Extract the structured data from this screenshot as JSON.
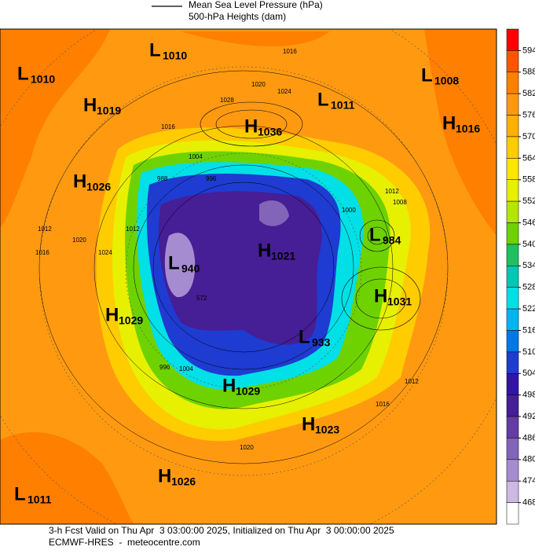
{
  "header": {
    "line1": "Mean Sea Level Pressure (hPa)",
    "line2": "500-hPa Heights (dam)"
  },
  "centers": [
    {
      "type": "L",
      "value": 1010
    },
    {
      "type": "L",
      "value": 1010
    },
    {
      "type": "H",
      "value": 1019
    },
    {
      "type": "L",
      "value": 1011
    },
    {
      "type": "H",
      "value": 1036
    },
    {
      "type": "L",
      "value": 1008
    },
    {
      "type": "H",
      "value": 1016
    },
    {
      "type": "H",
      "value": 1026
    },
    {
      "type": "L",
      "value": 984
    },
    {
      "type": "H",
      "value": 1021
    },
    {
      "type": "L",
      "value": 940
    },
    {
      "type": "H",
      "value": 1031
    },
    {
      "type": "H",
      "value": 1029
    },
    {
      "type": "L",
      "value": 933
    },
    {
      "type": "H",
      "value": 1029
    },
    {
      "type": "H",
      "value": 1023
    },
    {
      "type": "H",
      "value": 1026
    },
    {
      "type": "L",
      "value": 1011
    }
  ],
  "contour_labels": [
    "1016",
    "1020",
    "1028",
    "1024",
    "1016",
    "1004",
    "996",
    "988",
    "1012",
    "1008",
    "1000",
    "1012",
    "1016",
    "1024",
    "1020",
    "1012",
    "996",
    "1004",
    "572",
    "1012",
    "1016",
    "1020"
  ],
  "colorbar": {
    "ticks": [
      594,
      588,
      582,
      576,
      570,
      564,
      558,
      552,
      546,
      540,
      534,
      528,
      522,
      516,
      510,
      504,
      498,
      492,
      486,
      480,
      474,
      468
    ],
    "colors": [
      "#ff0000",
      "#ff5500",
      "#ff7f00",
      "#ff9a10",
      "#ffb000",
      "#ffcc00",
      "#ffe600",
      "#e6f000",
      "#b4e600",
      "#6ed200",
      "#20c060",
      "#00c8b4",
      "#00e0e6",
      "#00b4f0",
      "#0078e6",
      "#1e3cd2",
      "#3214aa",
      "#461e96",
      "#643ca5",
      "#8264b9",
      "#a58cd0",
      "#cdb9e1",
      "#ffffff"
    ]
  },
  "footer": {
    "line1": "3-h Fcst Valid on Thu Apr  3 03:00:00 2025, Initialized on Thu Apr  3 00:00:00 2025",
    "line2": "ECMWF-HRES  -  meteocentre.com"
  }
}
